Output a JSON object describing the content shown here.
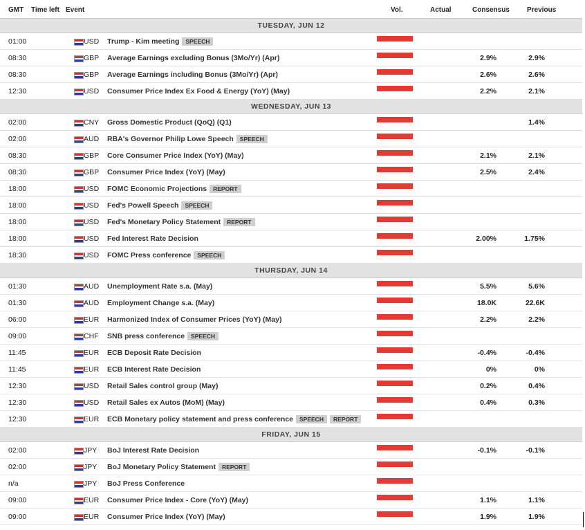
{
  "header": {
    "columns": [
      "GMT",
      "Time left",
      "Event",
      "Vol.",
      "Actual",
      "Consensus",
      "Previous"
    ]
  },
  "days": [
    {
      "title": "TUESDAY, JUN 12",
      "events": [
        {
          "time": "01:00",
          "currency": "USD",
          "event": "Trump - Kim meeting",
          "tags": [
            "SPEECH"
          ]
        },
        {
          "time": "08:30",
          "currency": "GBP",
          "event": "Average Earnings excluding Bonus (3Mo/Yr) (Apr)",
          "consensus": "2.9%",
          "previous": "2.9%"
        },
        {
          "time": "08:30",
          "currency": "GBP",
          "event": "Average Earnings including Bonus (3Mo/Yr) (Apr)",
          "consensus": "2.6%",
          "previous": "2.6%"
        },
        {
          "time": "12:30",
          "currency": "USD",
          "event": "Consumer Price Index Ex Food & Energy (YoY) (May)",
          "consensus": "2.2%",
          "previous": "2.1%"
        }
      ]
    },
    {
      "title": "WEDNESDAY, JUN 13",
      "events": [
        {
          "time": "02:00",
          "currency": "CNY",
          "event": "Gross Domestic Product (QoQ) (Q1)",
          "previous": "1.4%"
        },
        {
          "time": "02:00",
          "currency": "AUD",
          "event": "RBA's Governor Philip Lowe Speech",
          "tags": [
            "SPEECH"
          ]
        },
        {
          "time": "08:30",
          "currency": "GBP",
          "event": "Core Consumer Price Index (YoY) (May)",
          "consensus": "2.1%",
          "previous": "2.1%"
        },
        {
          "time": "08:30",
          "currency": "GBP",
          "event": "Consumer Price Index (YoY) (May)",
          "consensus": "2.5%",
          "previous": "2.4%"
        },
        {
          "time": "18:00",
          "currency": "USD",
          "event": "FOMC Economic Projections",
          "tags": [
            "REPORT"
          ]
        },
        {
          "time": "18:00",
          "currency": "USD",
          "event": "Fed's Powell Speech",
          "tags": [
            "SPEECH"
          ]
        },
        {
          "time": "18:00",
          "currency": "USD",
          "event": "Fed's Monetary Policy Statement",
          "tags": [
            "REPORT"
          ]
        },
        {
          "time": "18:00",
          "currency": "USD",
          "event": "Fed Interest Rate Decision",
          "consensus": "2.00%",
          "previous": "1.75%"
        },
        {
          "time": "18:30",
          "currency": "USD",
          "event": "FOMC Press conference",
          "tags": [
            "SPEECH"
          ]
        }
      ]
    },
    {
      "title": "THURSDAY, JUN 14",
      "events": [
        {
          "time": "01:30",
          "currency": "AUD",
          "event": "Unemployment Rate s.a. (May)",
          "consensus": "5.5%",
          "previous": "5.6%"
        },
        {
          "time": "01:30",
          "currency": "AUD",
          "event": "Employment Change s.a. (May)",
          "consensus": "18.0K",
          "previous": "22.6K"
        },
        {
          "time": "06:00",
          "currency": "EUR",
          "event": "Harmonized Index of Consumer Prices (YoY) (May)",
          "consensus": "2.2%",
          "previous": "2.2%"
        },
        {
          "time": "09:00",
          "currency": "CHF",
          "event": "SNB press conference",
          "tags": [
            "SPEECH"
          ]
        },
        {
          "time": "11:45",
          "currency": "EUR",
          "event": "ECB Deposit Rate Decision",
          "consensus": "-0.4%",
          "previous": "-0.4%"
        },
        {
          "time": "11:45",
          "currency": "EUR",
          "event": "ECB Interest Rate Decision",
          "consensus": "0%",
          "previous": "0%"
        },
        {
          "time": "12:30",
          "currency": "USD",
          "event": "Retail Sales control group (May)",
          "consensus": "0.2%",
          "previous": "0.4%"
        },
        {
          "time": "12:30",
          "currency": "USD",
          "event": "Retail Sales ex Autos (MoM) (May)",
          "consensus": "0.4%",
          "previous": "0.3%"
        },
        {
          "time": "12:30",
          "currency": "EUR",
          "event": "ECB Monetary policy statement and press conference",
          "tags": [
            "SPEECH",
            "REPORT"
          ]
        }
      ]
    },
    {
      "title": "FRIDAY, JUN 15",
      "events": [
        {
          "time": "02:00",
          "currency": "JPY",
          "event": "BoJ Interest Rate Decision",
          "consensus": "-0.1%",
          "previous": "-0.1%"
        },
        {
          "time": "02:00",
          "currency": "JPY",
          "event": "BoJ Monetary Policy Statement",
          "tags": [
            "REPORT"
          ]
        },
        {
          "time": "n/a",
          "currency": "JPY",
          "event": "BoJ Press Conference"
        },
        {
          "time": "09:00",
          "currency": "EUR",
          "event": "Consumer Price Index - Core (YoY) (May)",
          "consensus": "1.1%",
          "previous": "1.1%"
        },
        {
          "time": "09:00",
          "currency": "EUR",
          "event": "Consumer Price Index (YoY) (May)",
          "consensus": "1.9%",
          "previous": "1.9%"
        }
      ]
    }
  ]
}
